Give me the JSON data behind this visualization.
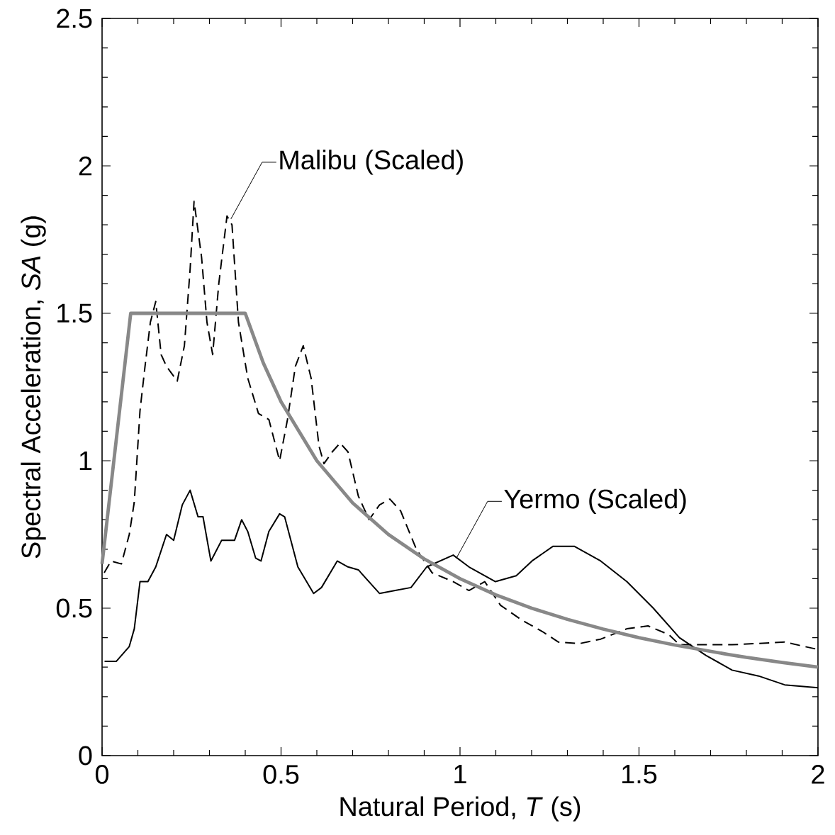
{
  "chart_data": {
    "type": "line",
    "xlabel": "Natural Period, *T* (s)",
    "ylabel": "Spectral Acceleration, *SA* (g)",
    "xlim": [
      0,
      2
    ],
    "ylim": [
      0,
      2.5
    ],
    "xticks": [
      0,
      0.5,
      1,
      1.5,
      2
    ],
    "yticks": [
      0,
      0.5,
      1,
      1.5,
      2,
      2.5
    ],
    "marker": "none",
    "series": [
      {
        "color": "#000000",
        "line_style": "dashed",
        "x": [
          0.006,
          0.025,
          0.054,
          0.076,
          0.09,
          0.106,
          0.12,
          0.135,
          0.15,
          0.165,
          0.18,
          0.21,
          0.23,
          0.246,
          0.257,
          0.278,
          0.293,
          0.309,
          0.326,
          0.349,
          0.363,
          0.381,
          0.407,
          0.437,
          0.466,
          0.496,
          0.518,
          0.54,
          0.562,
          0.584,
          0.606,
          0.62,
          0.643,
          0.665,
          0.687,
          0.716,
          0.746,
          0.775,
          0.804,
          0.834,
          0.878,
          0.922,
          0.981,
          1.025,
          1.069,
          1.113,
          1.172,
          1.231,
          1.275,
          1.334,
          1.393,
          1.466,
          1.525,
          1.584,
          1.613,
          1.76,
          1.907,
          2.0
        ],
        "values": [
          0.62,
          0.66,
          0.65,
          0.75,
          0.86,
          1.17,
          1.32,
          1.47,
          1.54,
          1.36,
          1.32,
          1.27,
          1.39,
          1.65,
          1.88,
          1.69,
          1.47,
          1.36,
          1.6,
          1.83,
          1.8,
          1.47,
          1.28,
          1.16,
          1.14,
          1.0,
          1.14,
          1.32,
          1.39,
          1.28,
          1.05,
          0.99,
          1.03,
          1.06,
          1.03,
          0.88,
          0.8,
          0.85,
          0.87,
          0.83,
          0.7,
          0.62,
          0.59,
          0.56,
          0.59,
          0.51,
          0.46,
          0.42,
          0.385,
          0.38,
          0.395,
          0.43,
          0.44,
          0.41,
          0.376,
          0.376,
          0.385,
          0.36
        ]
      },
      {
        "color": "#000000",
        "line_style": "solid",
        "x": [
          0.007,
          0.04,
          0.076,
          0.09,
          0.106,
          0.128,
          0.15,
          0.18,
          0.2,
          0.224,
          0.246,
          0.268,
          0.282,
          0.304,
          0.334,
          0.37,
          0.39,
          0.407,
          0.429,
          0.444,
          0.466,
          0.496,
          0.51,
          0.547,
          0.591,
          0.613,
          0.657,
          0.687,
          0.716,
          0.775,
          0.819,
          0.863,
          0.907,
          0.981,
          1.025,
          1.099,
          1.157,
          1.201,
          1.26,
          1.319,
          1.393,
          1.466,
          1.54,
          1.613,
          1.687,
          1.76,
          1.834,
          1.907,
          2.0
        ],
        "values": [
          0.32,
          0.32,
          0.37,
          0.43,
          0.59,
          0.59,
          0.64,
          0.75,
          0.73,
          0.85,
          0.9,
          0.81,
          0.81,
          0.66,
          0.73,
          0.73,
          0.8,
          0.76,
          0.67,
          0.66,
          0.76,
          0.82,
          0.81,
          0.64,
          0.55,
          0.57,
          0.66,
          0.64,
          0.63,
          0.55,
          0.56,
          0.57,
          0.64,
          0.68,
          0.64,
          0.59,
          0.61,
          0.66,
          0.71,
          0.71,
          0.66,
          0.59,
          0.5,
          0.4,
          0.34,
          0.29,
          0.27,
          0.24,
          0.23
        ]
      },
      {
        "color": "#888888",
        "line_style": "solid",
        "x": [
          0,
          0.08,
          0.4,
          0.45,
          0.5,
          0.6,
          0.7,
          0.8,
          0.9,
          1.0,
          1.1,
          1.2,
          1.3,
          1.4,
          1.5,
          1.6,
          1.75,
          1.8,
          1.9,
          2.0
        ],
        "values": [
          0.65,
          1.5,
          1.5,
          1.333,
          1.2,
          1.0,
          0.857,
          0.75,
          0.667,
          0.6,
          0.545,
          0.5,
          0.462,
          0.429,
          0.4,
          0.375,
          0.343,
          0.333,
          0.316,
          0.3
        ]
      }
    ],
    "annotations": [
      {
        "text": "Malibu (Scaled)",
        "x": 0.36,
        "y": 1.82
      },
      {
        "text": "Yermo (Scaled)",
        "x": 0.99,
        "y": 0.67
      }
    ]
  }
}
